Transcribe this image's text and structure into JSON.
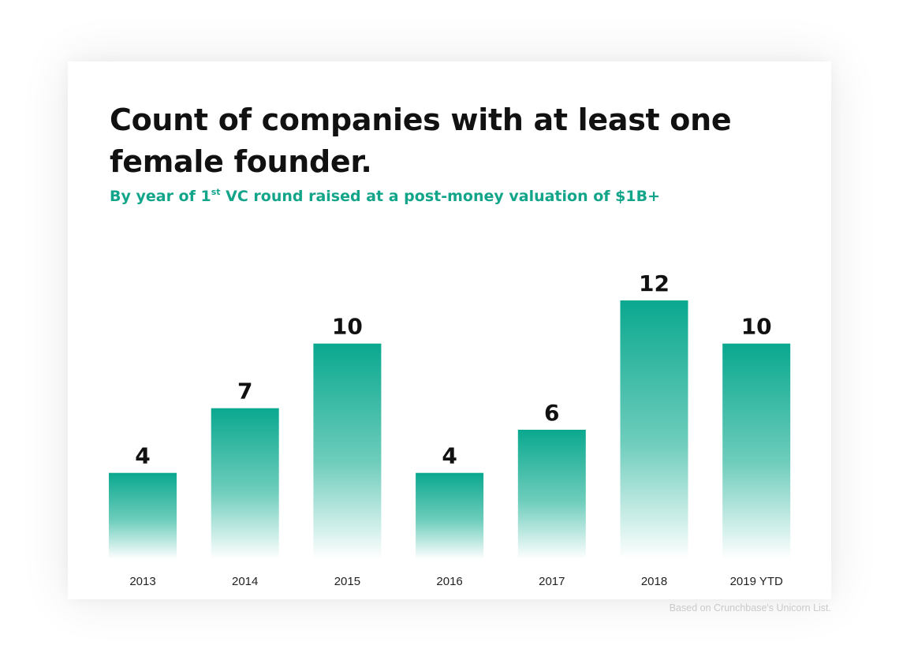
{
  "title": "Count of companies with at least one female founder.",
  "subtitle": {
    "prefix": "By year of 1",
    "sup": "st",
    "suffix": " VC round raised at a post-money valuation of $1B+"
  },
  "source": "Based on Crunchbase's Unicorn List.",
  "colors": {
    "bar_top": "#0aa88f",
    "bar_bottom": "#ffffff",
    "subtitle": "#13a58a"
  },
  "chart_data": {
    "type": "bar",
    "categories": [
      "2013",
      "2014",
      "2015",
      "2016",
      "2017",
      "2018",
      "2019 YTD"
    ],
    "values": [
      4,
      7,
      10,
      4,
      6,
      12,
      10
    ],
    "title": "Count of companies with at least one female founder.",
    "subtitle": "By year of 1st VC round raised at a post-money valuation of $1B+",
    "xlabel": "",
    "ylabel": "",
    "ylim": [
      0,
      12
    ],
    "grid": false,
    "data_labels": true
  }
}
